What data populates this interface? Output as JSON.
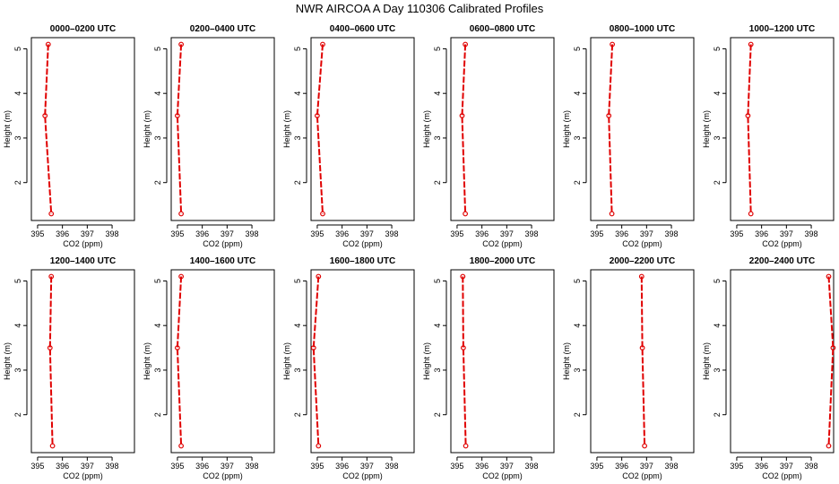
{
  "figure": {
    "title": "NWR AIRCOA A  Day 110306  Calibrated Profiles"
  },
  "style": {
    "series_color": "#e00000",
    "axis_color": "#000000",
    "background": "#ffffff"
  },
  "chart_data": [
    {
      "type": "line",
      "title": "0000–0200 UTC",
      "xlabel": "CO2 (ppm)",
      "ylabel": "Height (m)",
      "xlim": [
        394.75,
        398.9
      ],
      "ylim": [
        1.15,
        5.25
      ],
      "x_ticks": [
        "395",
        "396",
        "397",
        "398"
      ],
      "y_ticks": [
        "2",
        "3",
        "4",
        "5"
      ],
      "x_tick_values": [
        395,
        396,
        397,
        398
      ],
      "y_tick_values": [
        2,
        3,
        4,
        5
      ],
      "series": [
        {
          "x": [
            395.43,
            395.3,
            395.55
          ],
          "y": [
            5.1,
            3.5,
            1.3
          ]
        }
      ]
    },
    {
      "type": "line",
      "title": "0200–0400 UTC",
      "xlabel": "CO2 (ppm)",
      "ylabel": "Height (m)",
      "xlim": [
        394.75,
        398.9
      ],
      "ylim": [
        1.15,
        5.25
      ],
      "x_ticks": [
        "395",
        "396",
        "397",
        "398"
      ],
      "y_ticks": [
        "2",
        "3",
        "4",
        "5"
      ],
      "x_tick_values": [
        395,
        396,
        397,
        398
      ],
      "y_tick_values": [
        2,
        3,
        4,
        5
      ],
      "series": [
        {
          "x": [
            395.15,
            395.0,
            395.15
          ],
          "y": [
            5.1,
            3.5,
            1.3
          ]
        }
      ]
    },
    {
      "type": "line",
      "title": "0400–0600 UTC",
      "xlabel": "CO2 (ppm)",
      "ylabel": "Height (m)",
      "xlim": [
        394.75,
        398.9
      ],
      "ylim": [
        1.15,
        5.25
      ],
      "x_ticks": [
        "395",
        "396",
        "397",
        "398"
      ],
      "y_ticks": [
        "2",
        "3",
        "4",
        "5"
      ],
      "x_tick_values": [
        395,
        396,
        397,
        398
      ],
      "y_tick_values": [
        2,
        3,
        4,
        5
      ],
      "series": [
        {
          "x": [
            395.22,
            395.0,
            395.22
          ],
          "y": [
            5.1,
            3.5,
            1.3
          ]
        }
      ]
    },
    {
      "type": "line",
      "title": "0600–0800 UTC",
      "xlabel": "CO2 (ppm)",
      "ylabel": "Height (m)",
      "xlim": [
        394.75,
        398.9
      ],
      "ylim": [
        1.15,
        5.25
      ],
      "x_ticks": [
        "395",
        "396",
        "397",
        "398"
      ],
      "y_ticks": [
        "2",
        "3",
        "4",
        "5"
      ],
      "x_tick_values": [
        395,
        396,
        397,
        398
      ],
      "y_tick_values": [
        2,
        3,
        4,
        5
      ],
      "series": [
        {
          "x": [
            395.33,
            395.2,
            395.33
          ],
          "y": [
            5.1,
            3.5,
            1.3
          ]
        }
      ]
    },
    {
      "type": "line",
      "title": "0800–1000 UTC",
      "xlabel": "CO2 (ppm)",
      "ylabel": "Height (m)",
      "xlim": [
        394.75,
        398.9
      ],
      "ylim": [
        1.15,
        5.25
      ],
      "x_ticks": [
        "395",
        "396",
        "397",
        "398"
      ],
      "y_ticks": [
        "2",
        "3",
        "4",
        "5"
      ],
      "x_tick_values": [
        395,
        396,
        397,
        398
      ],
      "y_tick_values": [
        2,
        3,
        4,
        5
      ],
      "series": [
        {
          "x": [
            395.62,
            395.48,
            395.6
          ],
          "y": [
            5.1,
            3.5,
            1.3
          ]
        }
      ]
    },
    {
      "type": "line",
      "title": "1000–1200 UTC",
      "xlabel": "CO2 (ppm)",
      "ylabel": "Height (m)",
      "xlim": [
        394.75,
        398.9
      ],
      "ylim": [
        1.15,
        5.25
      ],
      "x_ticks": [
        "395",
        "396",
        "397",
        "398"
      ],
      "y_ticks": [
        "2",
        "3",
        "4",
        "5"
      ],
      "x_tick_values": [
        395,
        396,
        397,
        398
      ],
      "y_tick_values": [
        2,
        3,
        4,
        5
      ],
      "series": [
        {
          "x": [
            395.57,
            395.45,
            395.57
          ],
          "y": [
            5.1,
            3.5,
            1.3
          ]
        }
      ]
    },
    {
      "type": "line",
      "title": "1200–1400 UTC",
      "xlabel": "CO2 (ppm)",
      "ylabel": "Height (m)",
      "xlim": [
        394.75,
        398.9
      ],
      "ylim": [
        1.15,
        5.25
      ],
      "x_ticks": [
        "395",
        "396",
        "397",
        "398"
      ],
      "y_ticks": [
        "2",
        "3",
        "4",
        "5"
      ],
      "x_tick_values": [
        395,
        396,
        397,
        398
      ],
      "y_tick_values": [
        2,
        3,
        4,
        5
      ],
      "series": [
        {
          "x": [
            395.55,
            395.5,
            395.6
          ],
          "y": [
            5.1,
            3.5,
            1.3
          ]
        }
      ]
    },
    {
      "type": "line",
      "title": "1400–1600 UTC",
      "xlabel": "CO2 (ppm)",
      "ylabel": "Height (m)",
      "xlim": [
        394.75,
        398.9
      ],
      "ylim": [
        1.15,
        5.25
      ],
      "x_ticks": [
        "395",
        "396",
        "397",
        "398"
      ],
      "y_ticks": [
        "2",
        "3",
        "4",
        "5"
      ],
      "x_tick_values": [
        395,
        396,
        397,
        398
      ],
      "y_tick_values": [
        2,
        3,
        4,
        5
      ],
      "series": [
        {
          "x": [
            395.15,
            395.0,
            395.15
          ],
          "y": [
            5.1,
            3.5,
            1.3
          ]
        }
      ]
    },
    {
      "type": "line",
      "title": "1600–1800 UTC",
      "xlabel": "CO2 (ppm)",
      "ylabel": "Height (m)",
      "xlim": [
        394.75,
        398.9
      ],
      "ylim": [
        1.15,
        5.25
      ],
      "x_ticks": [
        "395",
        "396",
        "397",
        "398"
      ],
      "y_ticks": [
        "2",
        "3",
        "4",
        "5"
      ],
      "x_tick_values": [
        395,
        396,
        397,
        398
      ],
      "y_tick_values": [
        2,
        3,
        4,
        5
      ],
      "series": [
        {
          "x": [
            395.05,
            394.85,
            395.05
          ],
          "y": [
            5.1,
            3.5,
            1.3
          ]
        }
      ]
    },
    {
      "type": "line",
      "title": "1800–2000 UTC",
      "xlabel": "CO2 (ppm)",
      "ylabel": "Height (m)",
      "xlim": [
        394.75,
        398.9
      ],
      "ylim": [
        1.15,
        5.25
      ],
      "x_ticks": [
        "395",
        "396",
        "397",
        "398"
      ],
      "y_ticks": [
        "2",
        "3",
        "4",
        "5"
      ],
      "x_tick_values": [
        395,
        396,
        397,
        398
      ],
      "y_tick_values": [
        2,
        3,
        4,
        5
      ],
      "series": [
        {
          "x": [
            395.23,
            395.25,
            395.35
          ],
          "y": [
            5.1,
            3.5,
            1.3
          ]
        }
      ]
    },
    {
      "type": "line",
      "title": "2000–2200 UTC",
      "xlabel": "CO2 (ppm)",
      "ylabel": "Height (m)",
      "xlim": [
        394.75,
        398.9
      ],
      "ylim": [
        1.15,
        5.25
      ],
      "x_ticks": [
        "395",
        "396",
        "397",
        "398"
      ],
      "y_ticks": [
        "2",
        "3",
        "4",
        "5"
      ],
      "x_tick_values": [
        395,
        396,
        397,
        398
      ],
      "y_tick_values": [
        2,
        3,
        4,
        5
      ],
      "series": [
        {
          "x": [
            396.8,
            396.83,
            396.92
          ],
          "y": [
            5.1,
            3.5,
            1.3
          ]
        }
      ]
    },
    {
      "type": "line",
      "title": "2200–2400 UTC",
      "xlabel": "CO2 (ppm)",
      "ylabel": "Height (m)",
      "xlim": [
        394.75,
        398.9
      ],
      "ylim": [
        1.15,
        5.25
      ],
      "x_ticks": [
        "395",
        "396",
        "397",
        "398"
      ],
      "y_ticks": [
        "2",
        "3",
        "4",
        "5"
      ],
      "x_tick_values": [
        395,
        396,
        397,
        398
      ],
      "y_tick_values": [
        2,
        3,
        4,
        5
      ],
      "series": [
        {
          "x": [
            398.7,
            398.88,
            398.7
          ],
          "y": [
            5.1,
            3.5,
            1.3
          ]
        }
      ]
    }
  ]
}
